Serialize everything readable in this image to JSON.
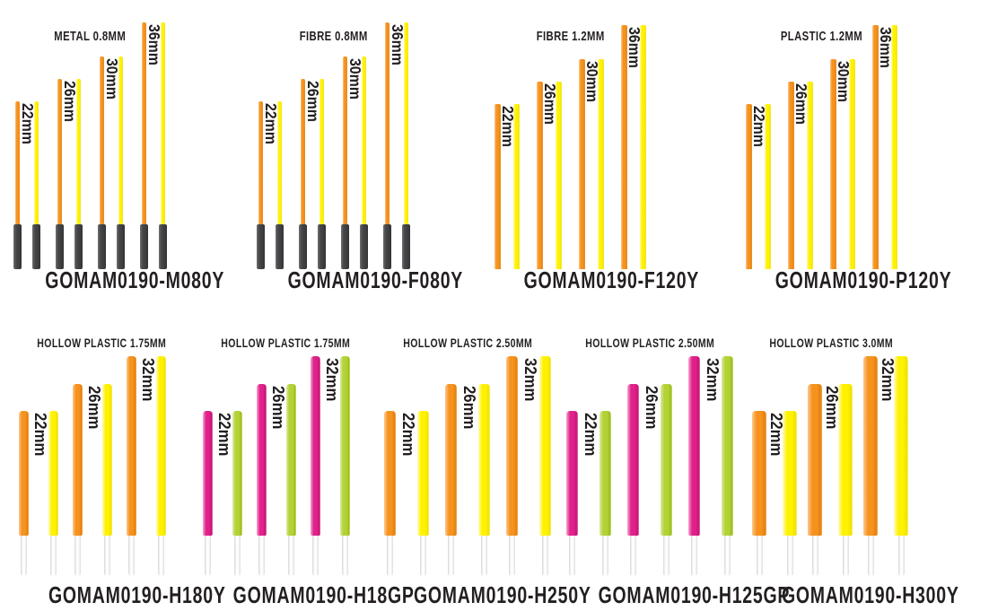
{
  "palette": {
    "orange": {
      "light": "#FCC98F",
      "main": "#F6921E",
      "dark": "#E2800F",
      "edge": "#F5A94E"
    },
    "yellow": {
      "light": "#FFFBC4",
      "main": "#FFF200",
      "dark": "#F0E200",
      "edge": "#FBEF6E"
    },
    "pink": {
      "light": "#F5A8D0",
      "main": "#E0218A",
      "dark": "#C41277",
      "edge": "#EE77B5"
    },
    "green": {
      "light": "#DEEAA8",
      "main": "#B2D235",
      "dark": "#9CBC21",
      "edge": "#CFE276"
    },
    "black_base": "#414042",
    "white_stem": "#F2F2F3",
    "text": "#231F20",
    "background": "#FFFFFF"
  },
  "rows": [
    {
      "groups": [
        {
          "title": "METAL 0.8MM",
          "code": "GOMAM0190-M080Y",
          "colors": [
            "orange",
            "yellow"
          ],
          "base": "black",
          "sizes": [
            "22mm",
            "26mm",
            "30mm",
            "36mm"
          ]
        },
        {
          "title": "FIBRE 0.8MM",
          "code": "GOMAM0190-F080Y",
          "colors": [
            "orange",
            "yellow"
          ],
          "base": "black",
          "sizes": [
            "22mm",
            "26mm",
            "30mm",
            "36mm"
          ]
        },
        {
          "title": "FIBRE 1.2MM",
          "code": "GOMAM0190-F120Y",
          "colors": [
            "orange",
            "yellow"
          ],
          "base": "none",
          "sizes": [
            "22mm",
            "26mm",
            "30mm",
            "36mm"
          ]
        },
        {
          "title": "PLASTIC 1.2MM",
          "code": "GOMAM0190-P120Y",
          "colors": [
            "orange",
            "yellow"
          ],
          "base": "none",
          "sizes": [
            "22mm",
            "26mm",
            "30mm",
            "36mm"
          ]
        }
      ]
    },
    {
      "groups": [
        {
          "title": "HOLLOW PLASTIC 1.75MM",
          "code": "GOMAM0190-H180Y",
          "colors": [
            "orange",
            "yellow"
          ],
          "base": "white",
          "sizes": [
            "22mm",
            "26mm",
            "32mm"
          ]
        },
        {
          "title": "HOLLOW PLASTIC 1.75MM",
          "code": "GOMAM0190-H18GP",
          "colors": [
            "pink",
            "green"
          ],
          "base": "white",
          "sizes": [
            "22mm",
            "26mm",
            "32mm"
          ]
        },
        {
          "title": "HOLLOW PLASTIC 2.50MM",
          "code": "GOMAM0190-H250Y",
          "colors": [
            "orange",
            "yellow"
          ],
          "base": "white",
          "sizes": [
            "22mm",
            "26mm",
            "32mm"
          ]
        },
        {
          "title": "HOLLOW PLASTIC 2.50MM",
          "code": "GOMAM0190-H125GP",
          "colors": [
            "pink",
            "green"
          ],
          "base": "white",
          "sizes": [
            "22mm",
            "26mm",
            "32mm"
          ]
        },
        {
          "title": "HOLLOW PLASTIC 3.0MM",
          "code": "GOMAM0190-H300Y",
          "colors": [
            "orange",
            "yellow"
          ],
          "base": "white",
          "sizes": [
            "22mm",
            "26mm",
            "32mm"
          ]
        }
      ]
    }
  ]
}
